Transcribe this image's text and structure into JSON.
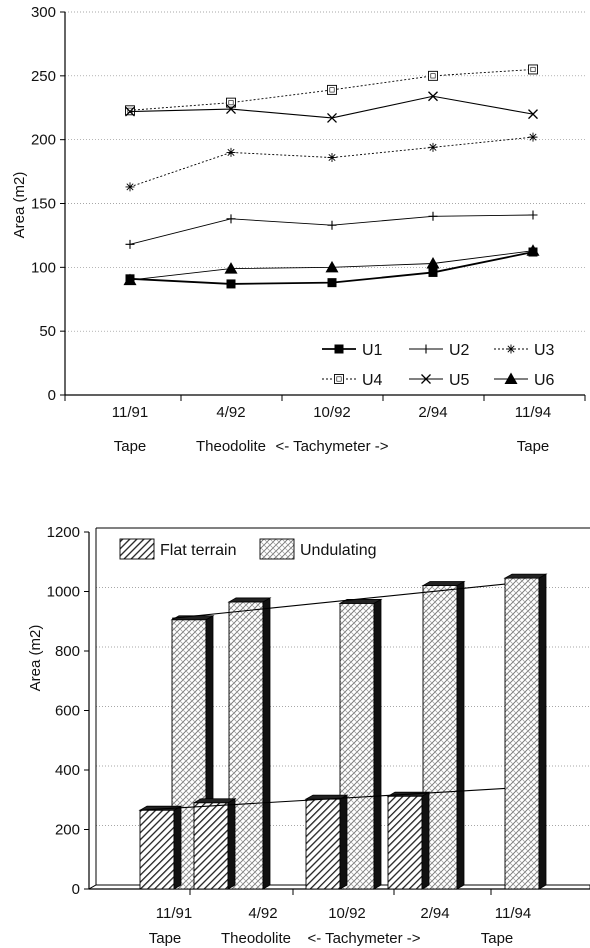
{
  "chart_data": [
    {
      "type": "line",
      "categories": [
        "11/91",
        "4/92",
        "10/92",
        "2/94",
        "11/94"
      ],
      "sublabels": [
        "Tape",
        "Theodolite",
        "<- Tachymeter ->",
        "",
        "Tape"
      ],
      "ylabel": "Area (m2)",
      "ylim": [
        0,
        300
      ],
      "yticks": [
        "0",
        "50",
        "100",
        "150",
        "200",
        "250",
        "300"
      ],
      "grid": true,
      "legend_position": "bottom-right",
      "series": [
        {
          "name": "U1",
          "values": [
            91,
            87,
            88,
            96,
            112
          ]
        },
        {
          "name": "U2",
          "values": [
            118,
            138,
            133,
            140,
            141
          ]
        },
        {
          "name": "U3",
          "values": [
            163,
            190,
            186,
            194,
            202
          ]
        },
        {
          "name": "U4",
          "values": [
            223,
            229,
            239,
            250,
            255
          ]
        },
        {
          "name": "U5",
          "values": [
            222,
            224,
            217,
            234,
            220
          ]
        },
        {
          "name": "U6",
          "values": [
            90,
            99,
            100,
            103,
            113
          ]
        }
      ]
    },
    {
      "type": "bar",
      "categories": [
        "11/91",
        "4/92",
        "10/92",
        "2/94",
        "11/94"
      ],
      "sublabels": [
        "Tape",
        "Theodolite",
        "<- Tachymeter ->",
        "",
        "Tape"
      ],
      "ylabel": "Area (m2)",
      "ylim": [
        0,
        1200
      ],
      "yticks": [
        "0",
        "200",
        "400",
        "600",
        "800",
        "1000",
        "1200"
      ],
      "grid": true,
      "legend_position": "top-left",
      "series": [
        {
          "name": "Flat terrain",
          "values": [
            265,
            290,
            302,
            312,
            null
          ]
        },
        {
          "name": "Undulating",
          "values": [
            905,
            965,
            960,
            1020,
            1045
          ]
        }
      ],
      "trendlines": [
        {
          "series": "Flat terrain",
          "start": 265,
          "end": 338
        },
        {
          "series": "Undulating",
          "start": 910,
          "end": 1025
        }
      ]
    }
  ]
}
